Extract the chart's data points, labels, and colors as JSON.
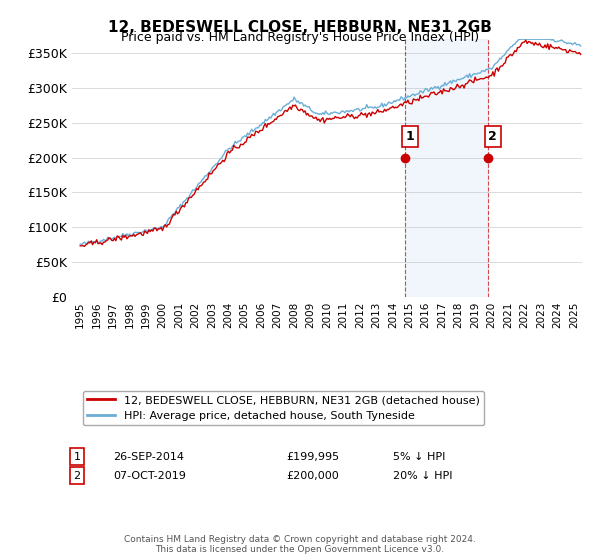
{
  "title": "12, BEDESWELL CLOSE, HEBBURN, NE31 2GB",
  "subtitle": "Price paid vs. HM Land Registry's House Price Index (HPI)",
  "ylabel_ticks": [
    "£0",
    "£50K",
    "£100K",
    "£150K",
    "£200K",
    "£250K",
    "£300K",
    "£350K"
  ],
  "ytick_values": [
    0,
    50000,
    100000,
    150000,
    200000,
    250000,
    300000,
    350000
  ],
  "ylim": [
    0,
    370000
  ],
  "xlim_start": 1994.5,
  "xlim_end": 2025.5,
  "hpi_color": "#6baed6",
  "price_color": "#cc0000",
  "sale1_x": 2014.73,
  "sale1_y": 199995,
  "sale1_label": "1",
  "sale2_x": 2019.77,
  "sale2_y": 200000,
  "sale2_label": "2",
  "shade_x1": 2014.73,
  "shade_x2": 2019.77,
  "footer_text": "Contains HM Land Registry data © Crown copyright and database right 2024.\nThis data is licensed under the Open Government Licence v3.0.",
  "legend_line1": "12, BEDESWELL CLOSE, HEBBURN, NE31 2GB (detached house)",
  "legend_line2": "HPI: Average price, detached house, South Tyneside",
  "table_row1": [
    "1",
    "26-SEP-2014",
    "£199,995",
    "5% ↓ HPI"
  ],
  "table_row2": [
    "2",
    "07-OCT-2019",
    "£200,000",
    "20% ↓ HPI"
  ]
}
